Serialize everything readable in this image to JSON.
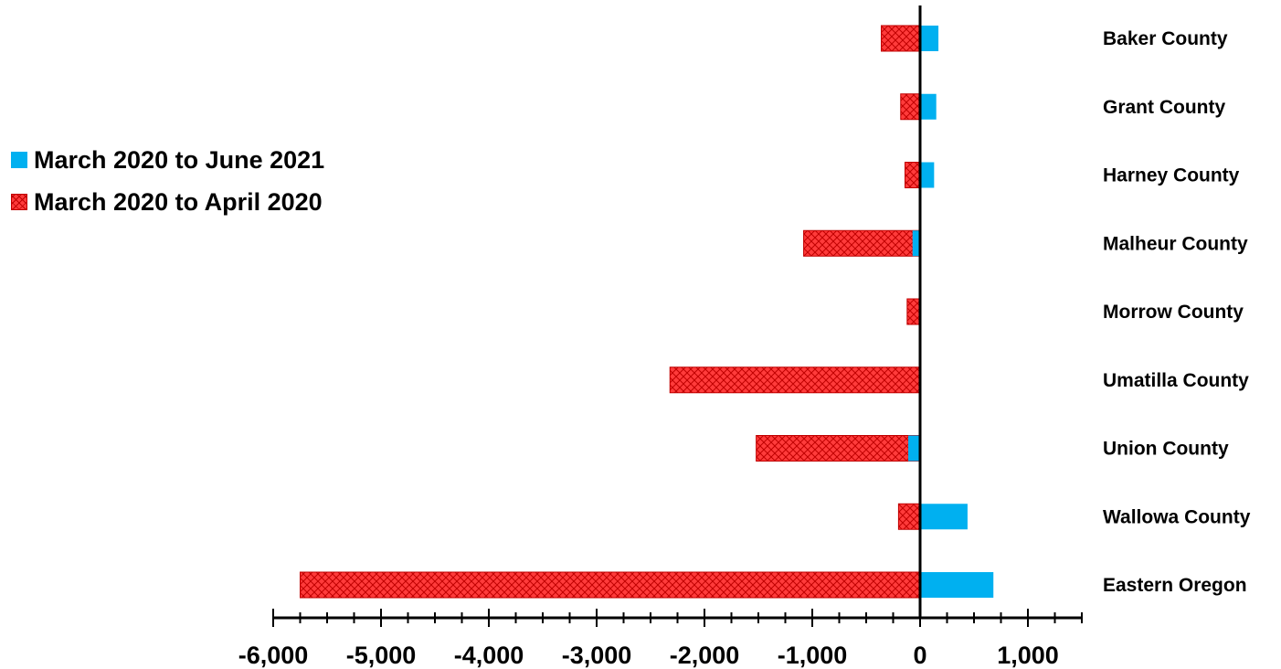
{
  "chart_data": {
    "type": "bar",
    "orientation": "horizontal",
    "categories": [
      "Baker County",
      "Grant County",
      "Harney County",
      "Malheur County",
      "Morrow County",
      "Umatilla County",
      "Union County",
      "Wallowa County",
      "Eastern Oregon"
    ],
    "series": [
      {
        "name": "March 2020 to April 2020",
        "values": [
          -360,
          -180,
          -140,
          -1080,
          -120,
          -2320,
          -1520,
          -200,
          -5750
        ]
      },
      {
        "name": "March 2020 to June 2021",
        "values": [
          170,
          150,
          130,
          -70,
          10,
          0,
          -110,
          440,
          680
        ]
      }
    ],
    "xlim": [
      -6000,
      1500
    ],
    "x_ticks": [
      "-6,000",
      "-5,000",
      "-4,000",
      "-3,000",
      "-2,000",
      "-1,000",
      "0",
      "1,000"
    ],
    "tick_values": [
      -6000,
      -5000,
      -4000,
      -3000,
      -2000,
      -1000,
      0,
      1000
    ],
    "title": "",
    "xlabel": "",
    "ylabel": "",
    "legend_position": "left",
    "grid": false,
    "colors": {
      "march_june": "#00b0f0",
      "march_april": "#ff3b3b",
      "march_april_hatch": "#c00000",
      "axis": "#000000"
    }
  },
  "legend": {
    "items": [
      {
        "label": "March 2020 to June 2021"
      },
      {
        "label": "March 2020 to April 2020"
      }
    ]
  }
}
